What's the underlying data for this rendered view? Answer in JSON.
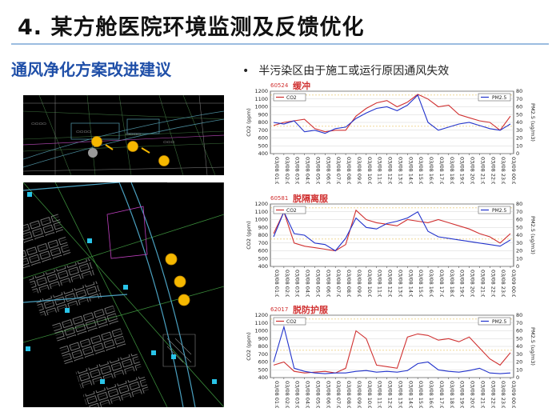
{
  "slide": {
    "title": "4. 某方舱医院环境监测及反馈优化",
    "left_heading": "通风净化方案改进建议",
    "bullet": "半污染区由于施工或运行原因通风失效"
  },
  "colors": {
    "heading_blue": "#1f4fa8",
    "series_red": "#d03030",
    "series_blue": "#2233cc",
    "marker_yellow": "#f5b800"
  },
  "chart_data": [
    {
      "type": "line",
      "id_label": "60524",
      "panel_label": "缓冲",
      "x": [
        "03/08 01:00",
        "03/08 02:00",
        "03/08 03:00",
        "03/08 04:00",
        "03/08 05:00",
        "03/08 06:00",
        "03/08 07:00",
        "03/08 08:00",
        "03/08 09:00",
        "03/08 10:00",
        "03/08 11:00",
        "03/08 12:00",
        "03/08 13:00",
        "03/08 14:00",
        "03/08 15:00",
        "03/08 16:00",
        "03/08 17:00",
        "03/08 18:00",
        "03/08 19:00",
        "03/08 20:00",
        "03/08 21:00",
        "03/08 22:00",
        "03/08 23:00",
        "03/09 00:00"
      ],
      "ylabel": "CO2 (ppm)",
      "y2label": "PM2.5 (ug/m3)",
      "ylim": [
        400,
        1200
      ],
      "y2lim": [
        0,
        80
      ],
      "yticks": [
        400,
        500,
        600,
        700,
        800,
        900,
        1000,
        1100,
        1200
      ],
      "y2ticks": [
        0,
        10,
        20,
        30,
        40,
        50,
        60,
        70,
        80
      ],
      "series": [
        {
          "name": "CO2",
          "axis": "left",
          "color": "#d03030",
          "values": [
            760,
            800,
            820,
            840,
            720,
            680,
            700,
            700,
            880,
            980,
            1050,
            1080,
            1000,
            1060,
            1160,
            1100,
            1000,
            1020,
            900,
            860,
            820,
            800,
            700,
            880
          ]
        },
        {
          "name": "PM2.5",
          "axis": "right",
          "color": "#2233cc",
          "values": [
            40,
            38,
            42,
            28,
            30,
            26,
            32,
            34,
            45,
            52,
            58,
            60,
            55,
            62,
            75,
            40,
            30,
            34,
            38,
            40,
            36,
            32,
            30,
            38
          ]
        }
      ]
    },
    {
      "type": "line",
      "id_label": "60581",
      "panel_label": "脱隔离服",
      "x": [
        "03/08 01:00",
        "03/08 02:00",
        "03/08 03:00",
        "03/08 04:00",
        "03/08 05:00",
        "03/08 06:00",
        "03/08 07:00",
        "03/08 08:00",
        "03/08 09:00",
        "03/08 10:00",
        "03/08 11:00",
        "03/08 12:00",
        "03/08 13:00",
        "03/08 14:00",
        "03/08 15:00",
        "03/08 16:00",
        "03/08 17:00",
        "03/08 18:00",
        "03/08 19:00",
        "03/08 20:00",
        "03/08 21:00",
        "03/08 22:00",
        "03/08 23:00",
        "03/09 00:00"
      ],
      "ylabel": "CO2 (ppm)",
      "y2label": "PM2.5 (ug/m3)",
      "ylim": [
        400,
        1200
      ],
      "y2lim": [
        0,
        80
      ],
      "yticks": [
        400,
        500,
        600,
        700,
        800,
        900,
        1000,
        1100,
        1200
      ],
      "y2ticks": [
        0,
        10,
        20,
        30,
        40,
        50,
        60,
        70,
        80
      ],
      "series": [
        {
          "name": "CO2",
          "axis": "left",
          "color": "#d03030",
          "values": [
            820,
            1100,
            700,
            660,
            640,
            620,
            600,
            680,
            1120,
            1000,
            960,
            940,
            920,
            1000,
            980,
            960,
            1000,
            960,
            920,
            880,
            820,
            780,
            700,
            820
          ]
        },
        {
          "name": "PM2.5",
          "axis": "right",
          "color": "#2233cc",
          "values": [
            38,
            70,
            42,
            40,
            30,
            28,
            20,
            36,
            62,
            50,
            48,
            55,
            58,
            62,
            70,
            45,
            38,
            36,
            34,
            32,
            30,
            28,
            26,
            34
          ]
        }
      ]
    },
    {
      "type": "line",
      "id_label": "62017",
      "panel_label": "脱防护服",
      "x": [
        "03/08 01:00",
        "03/08 02:00",
        "03/08 03:00",
        "03/08 04:00",
        "03/08 05:00",
        "03/08 06:00",
        "03/08 07:00",
        "03/08 08:00",
        "03/08 09:00",
        "03/08 10:00",
        "03/08 11:00",
        "03/08 12:00",
        "03/08 13:00",
        "03/08 14:00",
        "03/08 15:00",
        "03/08 16:00",
        "03/08 17:00",
        "03/08 18:00",
        "03/08 19:00",
        "03/08 20:00",
        "03/08 21:00",
        "03/08 22:00",
        "03/08 23:00",
        "03/09 00:00"
      ],
      "ylabel": "CO2 (ppm)",
      "y2label": "PM2.5 (ug/m3)",
      "ylim": [
        400,
        1200
      ],
      "y2lim": [
        0,
        80
      ],
      "yticks": [
        400,
        500,
        600,
        700,
        800,
        900,
        1000,
        1100,
        1200
      ],
      "y2ticks": [
        0,
        10,
        20,
        30,
        40,
        50,
        60,
        70,
        80
      ],
      "series": [
        {
          "name": "CO2",
          "axis": "left",
          "color": "#d03030",
          "values": [
            560,
            600,
            480,
            460,
            470,
            480,
            460,
            520,
            1000,
            900,
            560,
            540,
            520,
            920,
            960,
            940,
            880,
            900,
            860,
            920,
            780,
            640,
            560,
            720
          ]
        },
        {
          "name": "PM2.5",
          "axis": "right",
          "color": "#2233cc",
          "values": [
            20,
            65,
            12,
            8,
            6,
            5,
            6,
            6,
            8,
            9,
            7,
            8,
            7,
            9,
            18,
            20,
            10,
            8,
            7,
            9,
            12,
            6,
            5,
            6
          ]
        }
      ]
    }
  ]
}
